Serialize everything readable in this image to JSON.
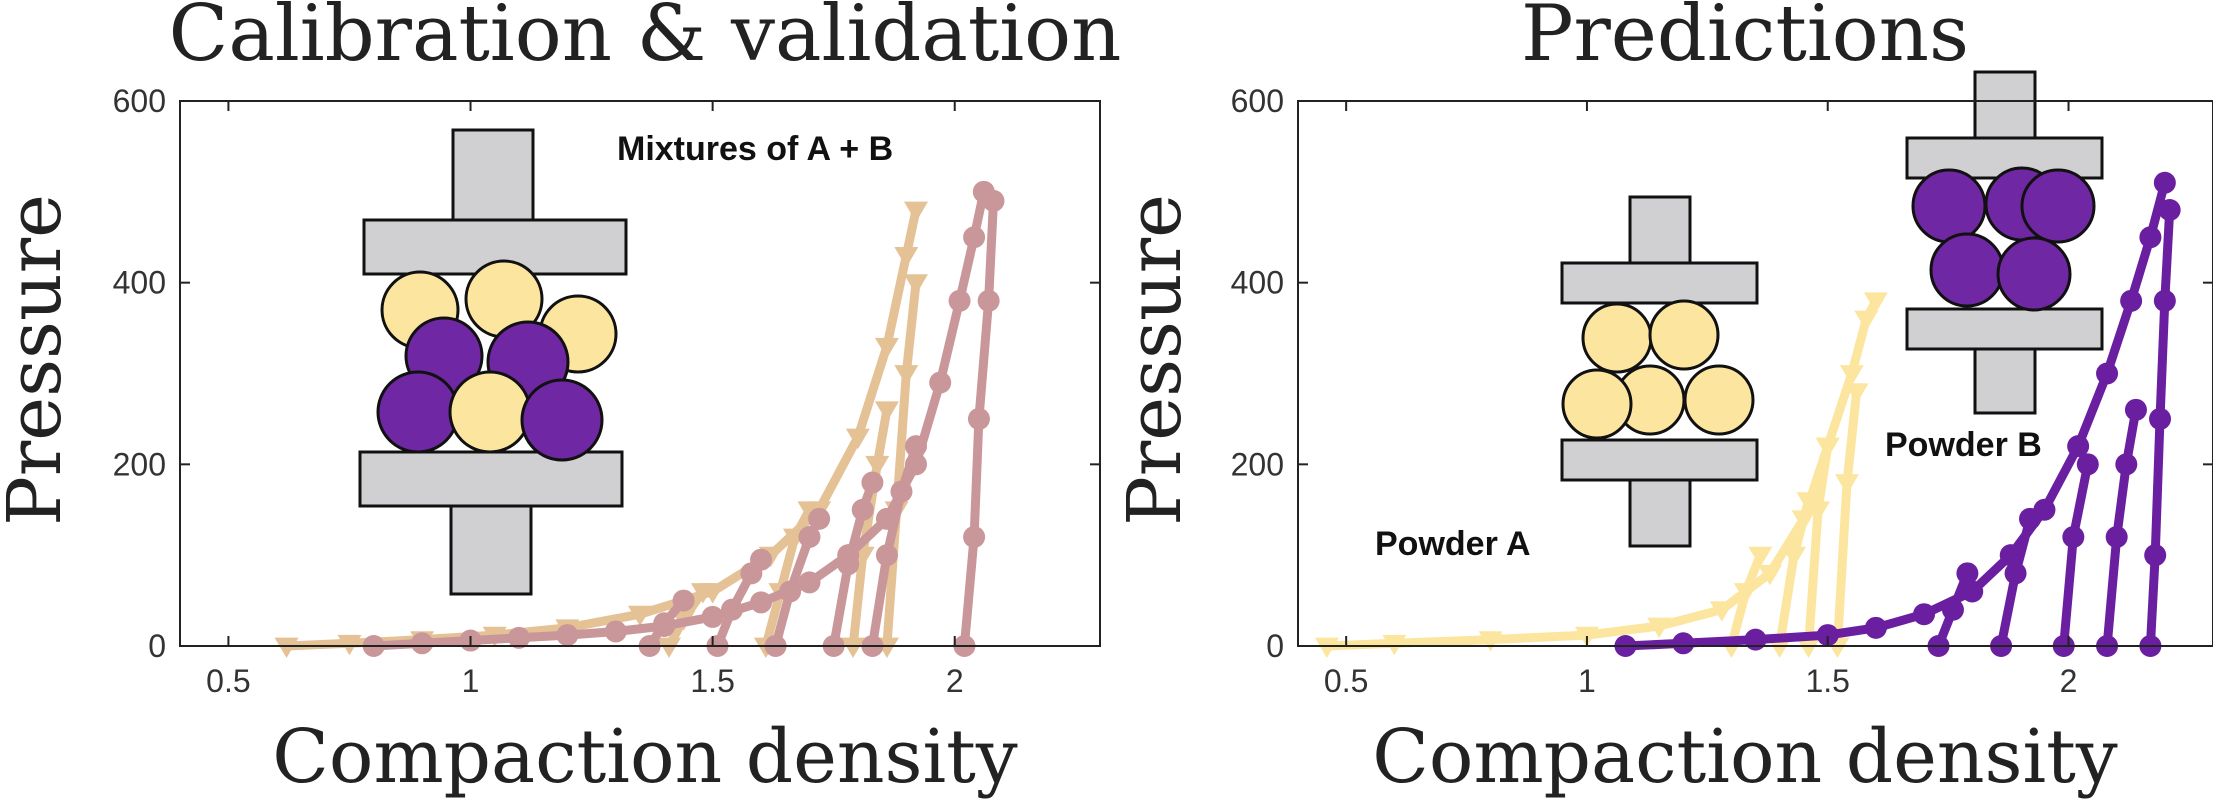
{
  "chart_data": [
    {
      "type": "line",
      "title": "Calibration & validation",
      "xlabel": "Compaction density",
      "ylabel": "Pressure",
      "xlim": [
        0.4,
        2.3
      ],
      "ylim": [
        0,
        600
      ],
      "xticks": [
        0.5,
        1,
        1.5,
        2
      ],
      "xtick_labels": [
        "0.5",
        "1",
        "1.5",
        "2"
      ],
      "yticks": [
        0,
        200,
        400,
        600
      ],
      "ytick_labels": [
        "0",
        "200",
        "400",
        "600"
      ],
      "annotation": "Mixtures of A + B",
      "legend": "none",
      "grid": false,
      "series": [
        {
          "marker": "triangle-down",
          "color": "#e5c296",
          "curves": [
            [
              [
                0.62,
                0
              ],
              [
                0.75,
                3
              ],
              [
                0.9,
                7
              ],
              [
                1.05,
                12
              ],
              [
                1.2,
                20
              ],
              [
                1.35,
                35
              ],
              [
                1.5,
                60
              ],
              [
                1.62,
                100
              ],
              [
                1.72,
                150
              ],
              [
                1.8,
                230
              ],
              [
                1.86,
                330
              ],
              [
                1.9,
                430
              ],
              [
                1.92,
                480
              ]
            ],
            [
              [
                1.41,
                0
              ],
              [
                1.44,
                30
              ],
              [
                1.48,
                60
              ]
            ],
            [
              [
                1.61,
                0
              ],
              [
                1.64,
                60
              ],
              [
                1.67,
                120
              ],
              [
                1.7,
                150
              ]
            ],
            [
              [
                1.79,
                0
              ],
              [
                1.81,
                100
              ],
              [
                1.84,
                200
              ],
              [
                1.86,
                260
              ]
            ],
            [
              [
                1.86,
                0
              ],
              [
                1.88,
                150
              ],
              [
                1.9,
                300
              ],
              [
                1.92,
                400
              ]
            ]
          ]
        },
        {
          "marker": "circle",
          "color": "#c99799",
          "curves": [
            [
              [
                0.8,
                0
              ],
              [
                0.9,
                3
              ],
              [
                1.0,
                6
              ],
              [
                1.1,
                9
              ],
              [
                1.2,
                12
              ],
              [
                1.3,
                16
              ],
              [
                1.4,
                22
              ],
              [
                1.5,
                32
              ],
              [
                1.6,
                48
              ],
              [
                1.7,
                70
              ],
              [
                1.78,
                100
              ],
              [
                1.86,
                140
              ],
              [
                1.92,
                200
              ],
              [
                1.97,
                290
              ],
              [
                2.01,
                380
              ],
              [
                2.04,
                450
              ],
              [
                2.06,
                500
              ]
            ],
            [
              [
                1.37,
                0
              ],
              [
                1.4,
                25
              ],
              [
                1.44,
                50
              ]
            ],
            [
              [
                1.51,
                0
              ],
              [
                1.54,
                40
              ],
              [
                1.58,
                80
              ],
              [
                1.6,
                95
              ]
            ],
            [
              [
                1.63,
                0
              ],
              [
                1.66,
                60
              ],
              [
                1.7,
                120
              ],
              [
                1.72,
                140
              ]
            ],
            [
              [
                1.75,
                0
              ],
              [
                1.78,
                90
              ],
              [
                1.81,
                150
              ],
              [
                1.83,
                180
              ]
            ],
            [
              [
                1.83,
                0
              ],
              [
                1.86,
                100
              ],
              [
                1.89,
                170
              ],
              [
                1.92,
                220
              ]
            ],
            [
              [
                2.02,
                0
              ],
              [
                2.04,
                120
              ],
              [
                2.05,
                250
              ],
              [
                2.07,
                380
              ],
              [
                2.08,
                490
              ]
            ]
          ]
        }
      ]
    },
    {
      "type": "line",
      "title": "Predictions",
      "xlabel": "Compaction density",
      "ylabel": "Pressure",
      "xlim": [
        0.4,
        2.3
      ],
      "ylim": [
        0,
        600
      ],
      "xticks": [
        0.5,
        1,
        1.5,
        2
      ],
      "xtick_labels": [
        "0.5",
        "1",
        "1.5",
        "2"
      ],
      "yticks": [
        0,
        200,
        400,
        600
      ],
      "ytick_labels": [
        "0",
        "200",
        "400",
        "600"
      ],
      "annotations": [
        "Powder A",
        "Powder B"
      ],
      "legend": "none",
      "grid": false,
      "series": [
        {
          "marker": "triangle-down",
          "color": "#fce69f",
          "curves": [
            [
              [
                0.46,
                0
              ],
              [
                0.6,
                3
              ],
              [
                0.8,
                7
              ],
              [
                1.0,
                12
              ],
              [
                1.15,
                22
              ],
              [
                1.28,
                40
              ],
              [
                1.38,
                80
              ],
              [
                1.45,
                140
              ],
              [
                1.5,
                220
              ],
              [
                1.55,
                300
              ],
              [
                1.58,
                360
              ],
              [
                1.6,
                380
              ]
            ],
            [
              [
                1.3,
                0
              ],
              [
                1.33,
                60
              ],
              [
                1.36,
                100
              ]
            ],
            [
              [
                1.4,
                0
              ],
              [
                1.43,
                100
              ],
              [
                1.46,
                160
              ]
            ],
            [
              [
                1.46,
                0
              ],
              [
                1.48,
                150
              ],
              [
                1.5,
                220
              ]
            ],
            [
              [
                1.52,
                0
              ],
              [
                1.54,
                180
              ],
              [
                1.56,
                280
              ]
            ]
          ]
        },
        {
          "marker": "circle",
          "color": "#6a1fa0",
          "curves": [
            [
              [
                1.08,
                0
              ],
              [
                1.2,
                3
              ],
              [
                1.35,
                7
              ],
              [
                1.5,
                12
              ],
              [
                1.6,
                20
              ],
              [
                1.7,
                35
              ],
              [
                1.8,
                60
              ],
              [
                1.88,
                100
              ],
              [
                1.95,
                150
              ],
              [
                2.02,
                220
              ],
              [
                2.08,
                300
              ],
              [
                2.13,
                380
              ],
              [
                2.17,
                450
              ],
              [
                2.2,
                510
              ]
            ],
            [
              [
                1.73,
                0
              ],
              [
                1.76,
                40
              ],
              [
                1.79,
                80
              ]
            ],
            [
              [
                1.86,
                0
              ],
              [
                1.89,
                80
              ],
              [
                1.92,
                140
              ]
            ],
            [
              [
                1.99,
                0
              ],
              [
                2.01,
                120
              ],
              [
                2.04,
                200
              ]
            ],
            [
              [
                2.08,
                0
              ],
              [
                2.1,
                120
              ],
              [
                2.12,
                200
              ],
              [
                2.14,
                260
              ]
            ],
            [
              [
                2.17,
                0
              ],
              [
                2.18,
                100
              ],
              [
                2.19,
                250
              ],
              [
                2.2,
                380
              ],
              [
                2.21,
                480
              ]
            ]
          ]
        }
      ]
    }
  ]
}
